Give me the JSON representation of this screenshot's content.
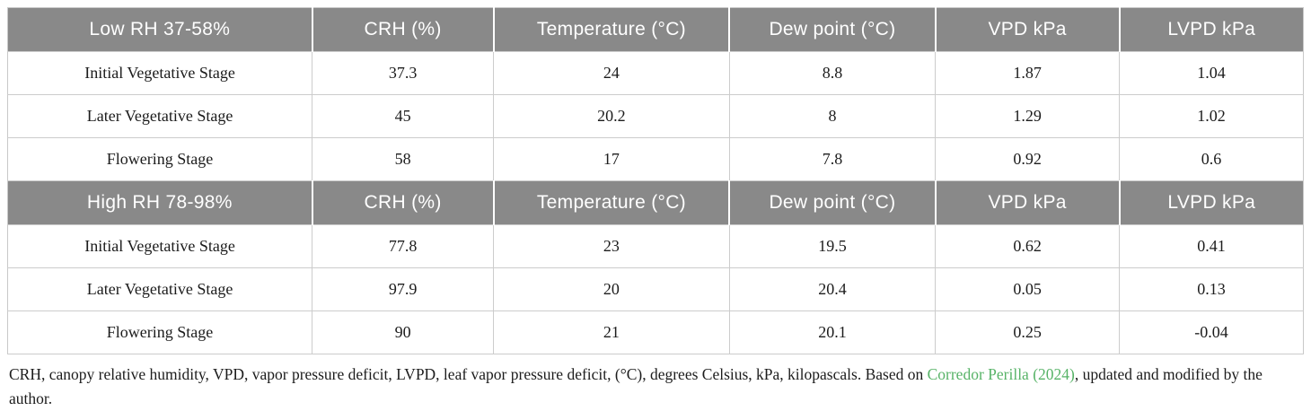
{
  "table": {
    "columns": [
      "CRH (%)",
      "Temperature (°C)",
      "Dew point (°C)",
      "VPD kPa",
      "LVPD kPa"
    ],
    "sections": [
      {
        "label": "Low RH 37-58%",
        "rows": [
          {
            "stage": "Initial Vegetative Stage",
            "values": [
              "37.3",
              "24",
              "8.8",
              "1.87",
              "1.04"
            ]
          },
          {
            "stage": "Later Vegetative Stage",
            "values": [
              "45",
              "20.2",
              "8",
              "1.29",
              "1.02"
            ]
          },
          {
            "stage": "Flowering Stage",
            "values": [
              "58",
              "17",
              "7.8",
              "0.92",
              "0.6"
            ]
          }
        ]
      },
      {
        "label": "High RH 78-98%",
        "rows": [
          {
            "stage": "Initial Vegetative Stage",
            "values": [
              "77.8",
              "23",
              "19.5",
              "0.62",
              "0.41"
            ]
          },
          {
            "stage": "Later Vegetative Stage",
            "values": [
              "97.9",
              "20",
              "20.4",
              "0.05",
              "0.13"
            ]
          },
          {
            "stage": "Flowering Stage",
            "values": [
              "90",
              "21",
              "20.1",
              "0.25",
              "-0.04"
            ]
          }
        ]
      }
    ]
  },
  "footnote": {
    "before_link": "CRH, canopy relative humidity, VPD, vapor pressure deficit, LVPD, leaf vapor pressure deficit, (°C), degrees Celsius, kPa, kilopascals. Based on ",
    "link": "Corredor Perilla (2024)",
    "after_link": ", updated and modified by the author."
  },
  "colors": {
    "header_background": "#898989",
    "header_text": "#ffffff",
    "link_green": "#57b367",
    "body_text": "#1c1c1c",
    "grid_line": "#cccccc"
  }
}
